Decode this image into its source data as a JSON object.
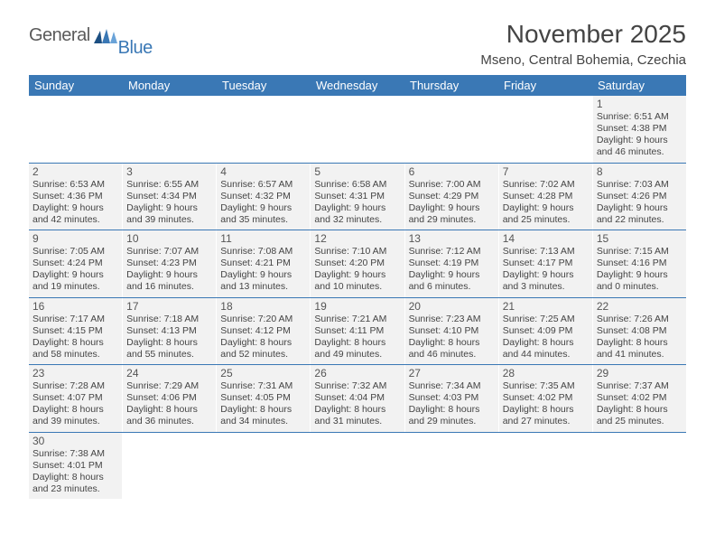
{
  "logo": {
    "text1": "General",
    "text2": "Blue"
  },
  "title": "November 2025",
  "location": "Mseno, Central Bohemia, Czechia",
  "colors": {
    "header_bg": "#3a78b5",
    "header_fg": "#ffffff",
    "cell_bg": "#f2f2f2",
    "text": "#444444",
    "logo_gray": "#5a5a5a",
    "logo_blue": "#3a78b5"
  },
  "day_headers": [
    "Sunday",
    "Monday",
    "Tuesday",
    "Wednesday",
    "Thursday",
    "Friday",
    "Saturday"
  ],
  "weeks": [
    [
      null,
      null,
      null,
      null,
      null,
      null,
      {
        "n": "1",
        "sunrise": "6:51 AM",
        "sunset": "4:38 PM",
        "dh": 9,
        "dm": 46
      }
    ],
    [
      {
        "n": "2",
        "sunrise": "6:53 AM",
        "sunset": "4:36 PM",
        "dh": 9,
        "dm": 42
      },
      {
        "n": "3",
        "sunrise": "6:55 AM",
        "sunset": "4:34 PM",
        "dh": 9,
        "dm": 39
      },
      {
        "n": "4",
        "sunrise": "6:57 AM",
        "sunset": "4:32 PM",
        "dh": 9,
        "dm": 35
      },
      {
        "n": "5",
        "sunrise": "6:58 AM",
        "sunset": "4:31 PM",
        "dh": 9,
        "dm": 32
      },
      {
        "n": "6",
        "sunrise": "7:00 AM",
        "sunset": "4:29 PM",
        "dh": 9,
        "dm": 29
      },
      {
        "n": "7",
        "sunrise": "7:02 AM",
        "sunset": "4:28 PM",
        "dh": 9,
        "dm": 25
      },
      {
        "n": "8",
        "sunrise": "7:03 AM",
        "sunset": "4:26 PM",
        "dh": 9,
        "dm": 22
      }
    ],
    [
      {
        "n": "9",
        "sunrise": "7:05 AM",
        "sunset": "4:24 PM",
        "dh": 9,
        "dm": 19
      },
      {
        "n": "10",
        "sunrise": "7:07 AM",
        "sunset": "4:23 PM",
        "dh": 9,
        "dm": 16
      },
      {
        "n": "11",
        "sunrise": "7:08 AM",
        "sunset": "4:21 PM",
        "dh": 9,
        "dm": 13
      },
      {
        "n": "12",
        "sunrise": "7:10 AM",
        "sunset": "4:20 PM",
        "dh": 9,
        "dm": 10
      },
      {
        "n": "13",
        "sunrise": "7:12 AM",
        "sunset": "4:19 PM",
        "dh": 9,
        "dm": 6
      },
      {
        "n": "14",
        "sunrise": "7:13 AM",
        "sunset": "4:17 PM",
        "dh": 9,
        "dm": 3
      },
      {
        "n": "15",
        "sunrise": "7:15 AM",
        "sunset": "4:16 PM",
        "dh": 9,
        "dm": 0
      }
    ],
    [
      {
        "n": "16",
        "sunrise": "7:17 AM",
        "sunset": "4:15 PM",
        "dh": 8,
        "dm": 58
      },
      {
        "n": "17",
        "sunrise": "7:18 AM",
        "sunset": "4:13 PM",
        "dh": 8,
        "dm": 55
      },
      {
        "n": "18",
        "sunrise": "7:20 AM",
        "sunset": "4:12 PM",
        "dh": 8,
        "dm": 52
      },
      {
        "n": "19",
        "sunrise": "7:21 AM",
        "sunset": "4:11 PM",
        "dh": 8,
        "dm": 49
      },
      {
        "n": "20",
        "sunrise": "7:23 AM",
        "sunset": "4:10 PM",
        "dh": 8,
        "dm": 46
      },
      {
        "n": "21",
        "sunrise": "7:25 AM",
        "sunset": "4:09 PM",
        "dh": 8,
        "dm": 44
      },
      {
        "n": "22",
        "sunrise": "7:26 AM",
        "sunset": "4:08 PM",
        "dh": 8,
        "dm": 41
      }
    ],
    [
      {
        "n": "23",
        "sunrise": "7:28 AM",
        "sunset": "4:07 PM",
        "dh": 8,
        "dm": 39
      },
      {
        "n": "24",
        "sunrise": "7:29 AM",
        "sunset": "4:06 PM",
        "dh": 8,
        "dm": 36
      },
      {
        "n": "25",
        "sunrise": "7:31 AM",
        "sunset": "4:05 PM",
        "dh": 8,
        "dm": 34
      },
      {
        "n": "26",
        "sunrise": "7:32 AM",
        "sunset": "4:04 PM",
        "dh": 8,
        "dm": 31
      },
      {
        "n": "27",
        "sunrise": "7:34 AM",
        "sunset": "4:03 PM",
        "dh": 8,
        "dm": 29
      },
      {
        "n": "28",
        "sunrise": "7:35 AM",
        "sunset": "4:02 PM",
        "dh": 8,
        "dm": 27
      },
      {
        "n": "29",
        "sunrise": "7:37 AM",
        "sunset": "4:02 PM",
        "dh": 8,
        "dm": 25
      }
    ],
    [
      {
        "n": "30",
        "sunrise": "7:38 AM",
        "sunset": "4:01 PM",
        "dh": 8,
        "dm": 23
      },
      null,
      null,
      null,
      null,
      null,
      null
    ]
  ]
}
